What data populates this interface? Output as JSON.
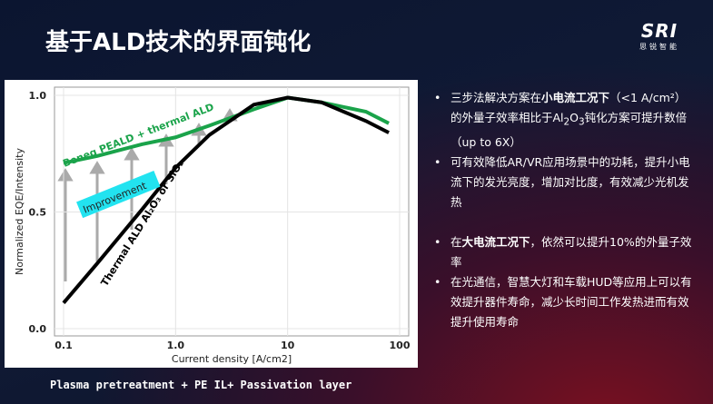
{
  "title": "基于ALD技术的界面钝化",
  "logo": {
    "name": "SRI",
    "subtitle": "思锐智能"
  },
  "caption": "Plasma pretreatment + PE IL+ Passivation layer",
  "bullets": [
    [
      "三步法解决方案在",
      "小电流工况下",
      "（<1 A/cm²）的外量子效率相比于Al",
      "2",
      "O",
      "3",
      "钝化方案可提升数倍（up to 6X）"
    ],
    [
      "可有效降低AR/VR应用场景中的功耗，提升小电流下的发光亮度，增加对比度，有效减少光机发热"
    ],
    [
      "在",
      "大电流工况下",
      "，依然可以提升10%的外量子效率"
    ],
    [
      "在光通信，智慧大灯和车载HUD等应用上可以有效提升器件寿命，减少长时间工作发热进而有效提升使用寿命"
    ]
  ],
  "chart_data": {
    "type": "line",
    "xlabel": "Current density [A/cm2]",
    "ylabel": "Normalized EQE/Intensity",
    "x": [
      0.1,
      0.2,
      0.5,
      1,
      2,
      5,
      10,
      20,
      50,
      80
    ],
    "series": [
      {
        "name": "Beneq PEALD + thermal ALD",
        "color": "#1aa34a",
        "values": [
          0.71,
          0.74,
          0.79,
          0.82,
          0.87,
          0.94,
          0.99,
          0.97,
          0.93,
          0.88
        ]
      },
      {
        "name": "Thermal ALD Al₂O₃ or SiO₂",
        "color": "#000000",
        "values": [
          0.11,
          0.28,
          0.51,
          0.69,
          0.83,
          0.96,
          0.99,
          0.97,
          0.89,
          0.84
        ]
      }
    ],
    "annotations": [
      "Improvement"
    ],
    "xscale": "log",
    "xlim": [
      0.1,
      100
    ],
    "xticks": [
      0.1,
      {
        "value": 1,
        "label": "1.0"
      },
      10,
      100
    ],
    "ylim": [
      0,
      1
    ],
    "yticks": [
      {
        "value": 0,
        "label": "0.0"
      },
      0.5,
      {
        "value": 1,
        "label": "1.0"
      }
    ],
    "grid": true
  }
}
